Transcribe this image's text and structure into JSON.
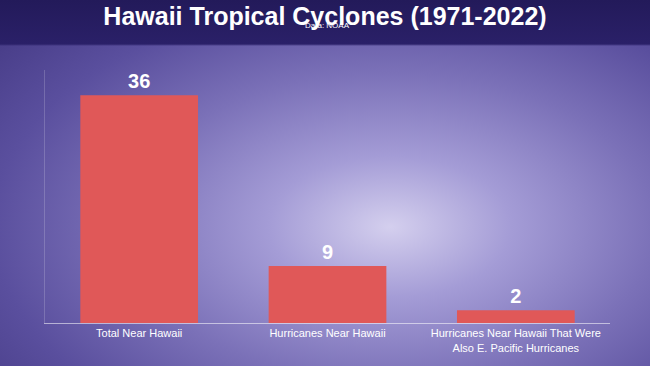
{
  "chart_data": {
    "type": "bar",
    "title": "Hawaii Tropical Cyclones (1971-2022)",
    "subtitle": "Data: NOAA",
    "categories": [
      "Total Near Hawaii",
      "Hurricanes Near Hawaii",
      "Hurricanes Near Hawaii That Were Also E. Pacific Hurricanes"
    ],
    "values": [
      36,
      9,
      2
    ],
    "color": "#e05858",
    "ylim": [
      0,
      40
    ],
    "data_labels": true,
    "tick_labels": "x",
    "grid": false
  }
}
